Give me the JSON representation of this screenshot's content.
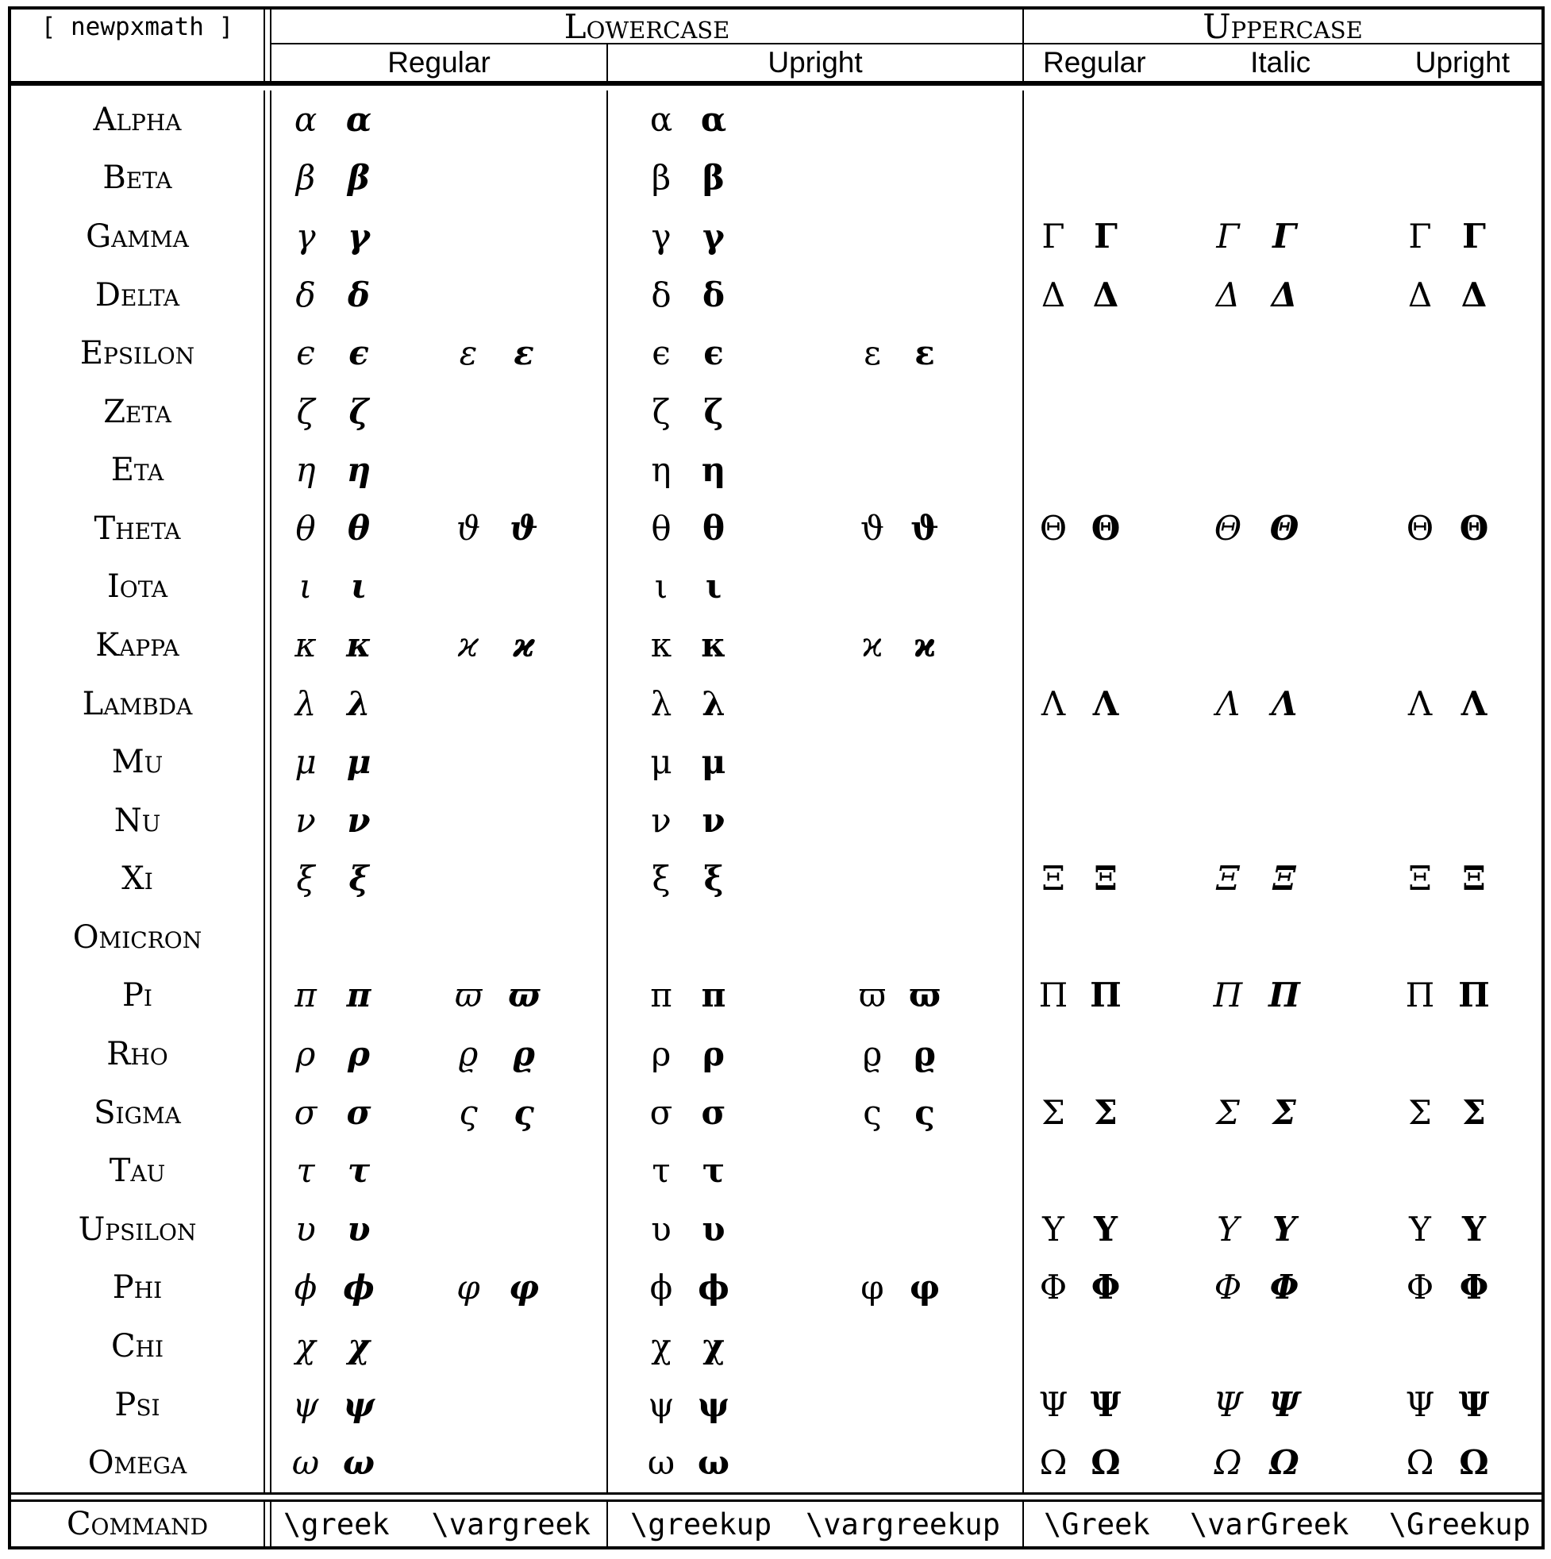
{
  "title_cell": "[ newpxmath ]",
  "colors": {
    "ink": "#000000",
    "paper": "#ffffff"
  },
  "sections": {
    "lowercase": {
      "label": "Lowercase",
      "subcolumns": [
        "Regular",
        "Upright"
      ]
    },
    "uppercase": {
      "label": "Uppercase",
      "subcolumns": [
        "Regular",
        "Italic",
        "Upright"
      ]
    }
  },
  "rows": [
    {
      "name": "Alpha",
      "lc": "α",
      "lc_var": "",
      "uc": ""
    },
    {
      "name": "Beta",
      "lc": "β",
      "lc_var": "",
      "uc": ""
    },
    {
      "name": "Gamma",
      "lc": "γ",
      "lc_var": "",
      "uc": "Γ"
    },
    {
      "name": "Delta",
      "lc": "δ",
      "lc_var": "",
      "uc": "Δ"
    },
    {
      "name": "Epsilon",
      "lc": "ϵ",
      "lc_var": "ε",
      "uc": ""
    },
    {
      "name": "Zeta",
      "lc": "ζ",
      "lc_var": "",
      "uc": ""
    },
    {
      "name": "Eta",
      "lc": "η",
      "lc_var": "",
      "uc": ""
    },
    {
      "name": "Theta",
      "lc": "θ",
      "lc_var": "ϑ",
      "uc": "Θ"
    },
    {
      "name": "Iota",
      "lc": "ι",
      "lc_var": "",
      "uc": ""
    },
    {
      "name": "Kappa",
      "lc": "κ",
      "lc_var": "ϰ",
      "uc": ""
    },
    {
      "name": "Lambda",
      "lc": "λ",
      "lc_var": "",
      "uc": "Λ"
    },
    {
      "name": "Mu",
      "lc": "μ",
      "lc_var": "",
      "uc": ""
    },
    {
      "name": "Nu",
      "lc": "ν",
      "lc_var": "",
      "uc": ""
    },
    {
      "name": "Xi",
      "lc": "ξ",
      "lc_var": "",
      "uc": "Ξ"
    },
    {
      "name": "Omicron",
      "lc": "",
      "lc_var": "",
      "uc": ""
    },
    {
      "name": "Pi",
      "lc": "π",
      "lc_var": "ϖ",
      "uc": "Π"
    },
    {
      "name": "Rho",
      "lc": "ρ",
      "lc_var": "ϱ",
      "uc": ""
    },
    {
      "name": "Sigma",
      "lc": "σ",
      "lc_var": "ς",
      "uc": "Σ"
    },
    {
      "name": "Tau",
      "lc": "τ",
      "lc_var": "",
      "uc": ""
    },
    {
      "name": "Upsilon",
      "lc": "υ",
      "lc_var": "",
      "uc": "Υ"
    },
    {
      "name": "Phi",
      "lc": "ϕ",
      "lc_var": "φ",
      "uc": "Φ"
    },
    {
      "name": "Chi",
      "lc": "χ",
      "lc_var": "",
      "uc": ""
    },
    {
      "name": "Psi",
      "lc": "ψ",
      "lc_var": "",
      "uc": "Ψ"
    },
    {
      "name": "Omega",
      "lc": "ω",
      "lc_var": "",
      "uc": "Ω"
    }
  ],
  "command_row": {
    "label": "Command",
    "lowercase_regular": [
      "\\greek",
      "\\vargreek"
    ],
    "lowercase_upright": [
      "\\greekup",
      "\\vargreekup"
    ],
    "uppercase": [
      "\\Greek",
      "\\varGreek",
      "\\Greekup"
    ]
  }
}
